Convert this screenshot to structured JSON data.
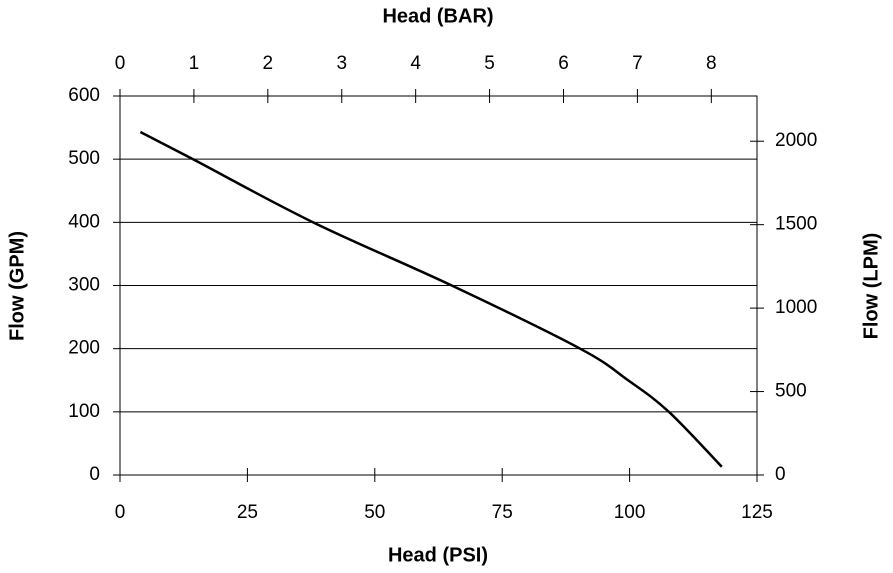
{
  "chart_data": {
    "type": "line",
    "x_label": "Head (PSI)",
    "x2_label": "Head (BAR)",
    "y_label": "Flow (GPM)",
    "y2_label": "Flow (LPM)",
    "x": [
      4,
      14.3,
      37.9,
      65.1,
      90.3,
      99.7,
      107.7,
      118.1
    ],
    "values": [
      543,
      500,
      400,
      300,
      200,
      150,
      100,
      13
    ],
    "color": "#000000",
    "xlim": [
      0,
      125
    ],
    "xticks": [
      0,
      25,
      50,
      75,
      100,
      125
    ],
    "x2lim": [
      0,
      8.618
    ],
    "x2ticks": [
      0,
      1,
      2,
      3,
      4,
      5,
      6,
      7,
      8
    ],
    "ylim": [
      0,
      600
    ],
    "yticks": [
      0,
      100,
      200,
      300,
      400,
      500,
      600
    ],
    "y2lim": [
      0,
      2271
    ],
    "y2ticks": [
      0,
      500,
      1000,
      1500,
      2000
    ],
    "grid": true
  }
}
